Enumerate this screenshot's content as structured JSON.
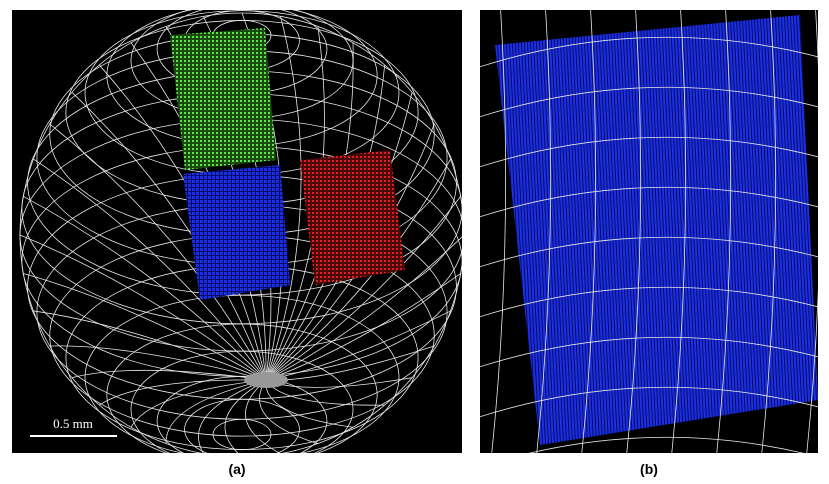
{
  "panels": [
    {
      "label": "(a)",
      "scale_bar": "0.5 mm"
    },
    {
      "label": "(b)"
    }
  ]
}
